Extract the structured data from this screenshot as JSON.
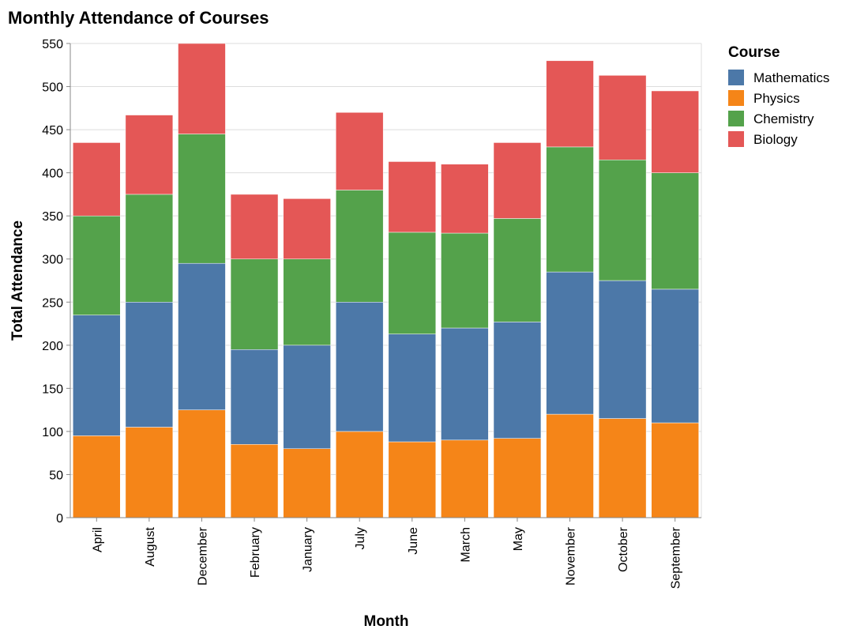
{
  "chart_data": {
    "type": "bar",
    "stacked": true,
    "title": "Monthly Attendance of Courses",
    "xlabel": "Month",
    "ylabel": "Total Attendance",
    "ylim": [
      0,
      550
    ],
    "yticks": [
      0,
      50,
      100,
      150,
      200,
      250,
      300,
      350,
      400,
      450,
      500,
      550
    ],
    "grid": true,
    "legend_title": "Course",
    "legend_position": "top-right",
    "categories": [
      "April",
      "August",
      "December",
      "February",
      "January",
      "July",
      "June",
      "March",
      "May",
      "November",
      "October",
      "September"
    ],
    "series": [
      {
        "name": "Physics",
        "color": "#f58518",
        "values": [
          95,
          105,
          125,
          85,
          80,
          100,
          88,
          90,
          92,
          120,
          115,
          110
        ]
      },
      {
        "name": "Mathematics",
        "color": "#4c78a8",
        "values": [
          140,
          145,
          170,
          110,
          120,
          150,
          125,
          130,
          135,
          165,
          160,
          155
        ]
      },
      {
        "name": "Chemistry",
        "color": "#54a24b",
        "values": [
          115,
          125,
          150,
          105,
          100,
          130,
          118,
          110,
          120,
          145,
          140,
          135
        ]
      },
      {
        "name": "Biology",
        "color": "#e45756",
        "values": [
          85,
          92,
          105,
          75,
          70,
          90,
          82,
          80,
          88,
          100,
          98,
          95
        ]
      }
    ],
    "legend_order": [
      "Mathematics",
      "Physics",
      "Chemistry",
      "Biology"
    ]
  }
}
